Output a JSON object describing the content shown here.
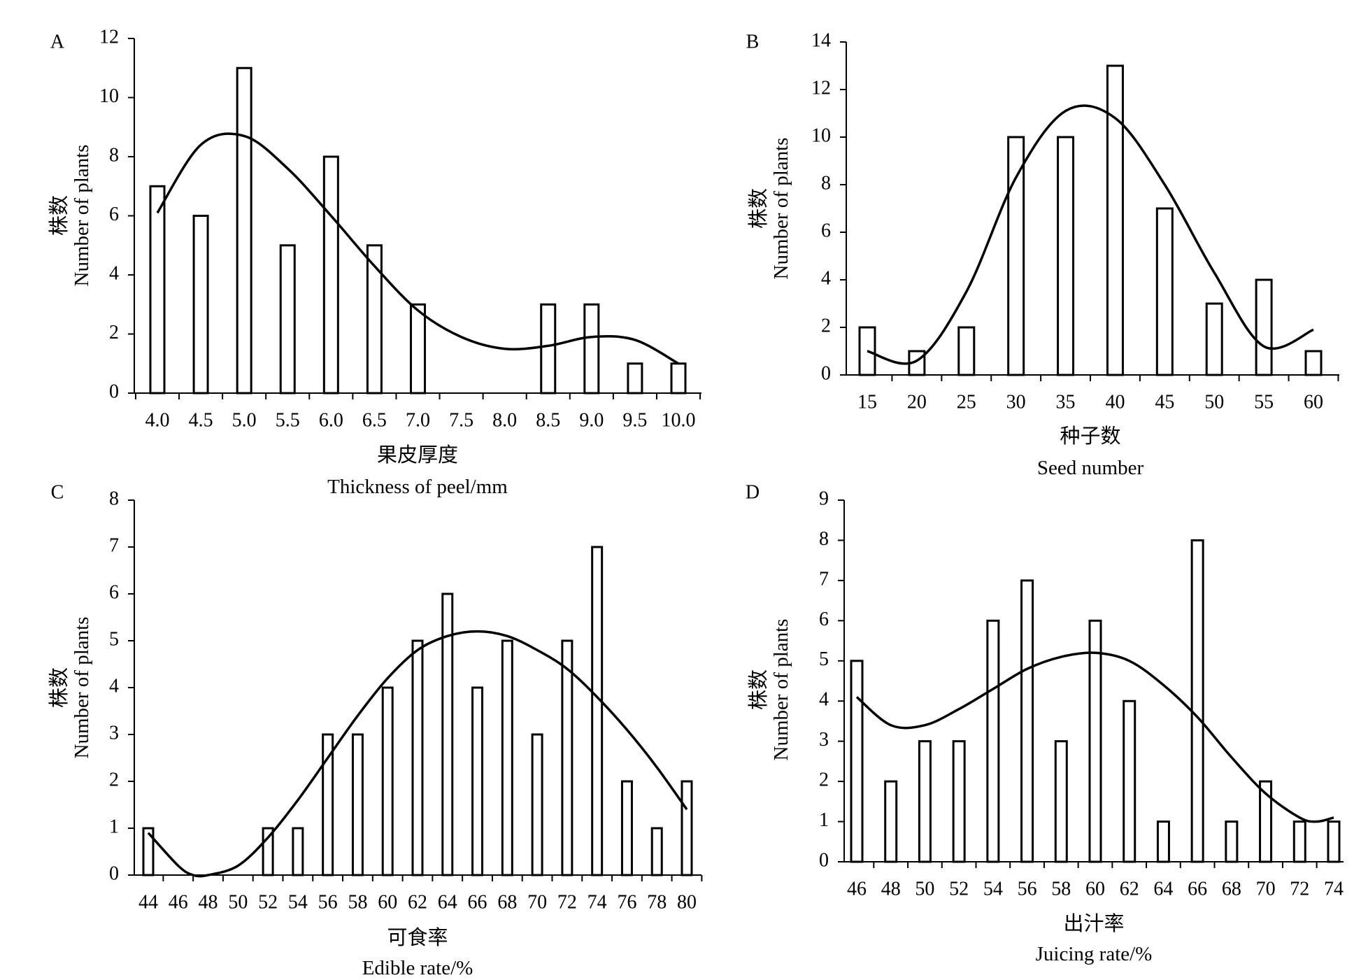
{
  "chart_data": [
    {
      "panel": "A",
      "type": "bar",
      "ylabel_cn": "株数",
      "ylabel_en": "Number of plants",
      "xlabel_cn": "果皮厚度",
      "xlabel_en": "Thickness of peel/mm",
      "ylim": [
        0,
        12
      ],
      "yticks": [
        0,
        2,
        4,
        6,
        8,
        10,
        12
      ],
      "categories": [
        "4.0",
        "4.5",
        "5.0",
        "5.5",
        "6.0",
        "6.5",
        "7.0",
        "7.5",
        "8.0",
        "8.5",
        "9.0",
        "9.5",
        "10.0"
      ],
      "values": [
        7,
        6,
        11,
        5,
        8,
        5,
        3,
        0,
        0,
        3,
        3,
        1,
        1
      ],
      "trendline": {
        "type": "polynomial fit",
        "x": [
          "4.0",
          "4.5",
          "5.0",
          "5.5",
          "6.0",
          "6.5",
          "7.0",
          "7.5",
          "8.0",
          "8.5",
          "9.0",
          "9.5",
          "10.0"
        ],
        "y": [
          6.1,
          8.4,
          8.7,
          7.6,
          6.0,
          4.3,
          2.8,
          1.9,
          1.5,
          1.6,
          1.9,
          1.8,
          1.0
        ]
      }
    },
    {
      "panel": "B",
      "type": "bar",
      "ylabel_cn": "株数",
      "ylabel_en": "Number of plants",
      "xlabel_cn": "种子数",
      "xlabel_en": "Seed number",
      "ylim": [
        0,
        14
      ],
      "yticks": [
        0,
        2,
        4,
        6,
        8,
        10,
        12,
        14
      ],
      "categories": [
        "15",
        "20",
        "25",
        "30",
        "35",
        "40",
        "45",
        "50",
        "55",
        "60"
      ],
      "values": [
        2,
        1,
        2,
        10,
        10,
        13,
        7,
        3,
        4,
        1
      ],
      "trendline": {
        "type": "polynomial fit",
        "x": [
          "15",
          "20",
          "25",
          "30",
          "35",
          "40",
          "45",
          "50",
          "55",
          "60"
        ],
        "y": [
          1.0,
          0.6,
          3.5,
          8.3,
          11.1,
          10.8,
          8.0,
          4.3,
          1.2,
          1.9
        ]
      }
    },
    {
      "panel": "C",
      "type": "bar",
      "ylabel_cn": "株数",
      "ylabel_en": "Number of plants",
      "xlabel_cn": "可食率",
      "xlabel_en": "Edible rate/%",
      "ylim": [
        0,
        8
      ],
      "yticks": [
        0,
        1,
        2,
        3,
        4,
        5,
        6,
        7,
        8
      ],
      "categories": [
        "44",
        "46",
        "48",
        "50",
        "52",
        "54",
        "56",
        "58",
        "60",
        "62",
        "64",
        "66",
        "68",
        "70",
        "72",
        "74",
        "76",
        "78",
        "80"
      ],
      "values": [
        1,
        0,
        0,
        0,
        1,
        1,
        3,
        3,
        4,
        5,
        6,
        4,
        5,
        3,
        5,
        7,
        2,
        1,
        2
      ],
      "trendline": {
        "type": "polynomial fit",
        "x": [
          "44",
          "46",
          "47",
          "48",
          "50",
          "52",
          "54",
          "56",
          "58",
          "60",
          "62",
          "64",
          "66",
          "68",
          "70",
          "72",
          "74",
          "76",
          "78",
          "80"
        ],
        "y": [
          0.9,
          0.2,
          0.0,
          0.0,
          0.2,
          0.8,
          1.6,
          2.5,
          3.4,
          4.2,
          4.8,
          5.1,
          5.2,
          5.1,
          4.8,
          4.4,
          3.8,
          3.1,
          2.3,
          1.4
        ]
      }
    },
    {
      "panel": "D",
      "type": "bar",
      "ylabel_cn": "株数",
      "ylabel_en": "Number of plants",
      "xlabel_cn": "出汁率",
      "xlabel_en": "Juicing rate/%",
      "ylim": [
        0,
        9
      ],
      "yticks": [
        0,
        1,
        2,
        3,
        4,
        5,
        6,
        7,
        8,
        9
      ],
      "categories": [
        "46",
        "48",
        "50",
        "52",
        "54",
        "56",
        "58",
        "60",
        "62",
        "64",
        "66",
        "68",
        "70",
        "72",
        "74"
      ],
      "values": [
        5,
        2,
        3,
        3,
        6,
        7,
        3,
        6,
        4,
        1,
        8,
        1,
        2,
        1,
        1
      ],
      "trendline": {
        "type": "polynomial fit",
        "x": [
          "46",
          "48",
          "50",
          "52",
          "54",
          "56",
          "58",
          "60",
          "62",
          "64",
          "66",
          "68",
          "70",
          "72",
          "73",
          "74"
        ],
        "y": [
          4.1,
          3.4,
          3.4,
          3.8,
          4.3,
          4.8,
          5.1,
          5.2,
          5.0,
          4.4,
          3.6,
          2.6,
          1.7,
          1.1,
          1.0,
          1.1
        ]
      }
    }
  ]
}
